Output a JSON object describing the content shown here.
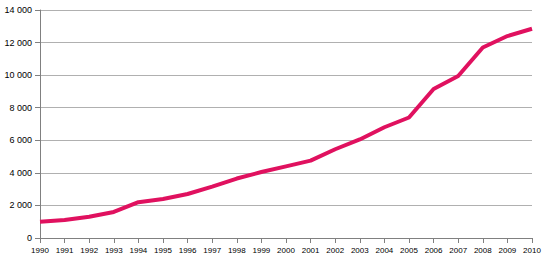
{
  "chart_data": {
    "type": "line",
    "categories": [
      "1990",
      "1991",
      "1992",
      "1993",
      "1994",
      "1995",
      "1996",
      "1997",
      "1998",
      "1999",
      "2000",
      "2001",
      "2002",
      "2003",
      "2004",
      "2005",
      "2006",
      "2007",
      "2008",
      "2009",
      "2010"
    ],
    "values": [
      1000,
      1100,
      1300,
      1600,
      2200,
      2400,
      2700,
      3150,
      3650,
      4050,
      4400,
      4750,
      5450,
      6050,
      6800,
      7400,
      9150,
      9950,
      11700,
      12400,
      12850
    ],
    "color": "#e0115f",
    "ylim": [
      0,
      14000
    ],
    "yticks": [
      0,
      {
        "value": 2000,
        "label": "2 000"
      },
      {
        "value": 4000,
        "label": "4 000"
      },
      {
        "value": 6000,
        "label": "6 000"
      },
      {
        "value": 8000,
        "label": "8 000"
      },
      {
        "value": 10000,
        "label": "10 000"
      },
      {
        "value": 12000,
        "label": "12 000"
      },
      {
        "value": 14000,
        "label": "14 000"
      }
    ],
    "grid": true
  }
}
